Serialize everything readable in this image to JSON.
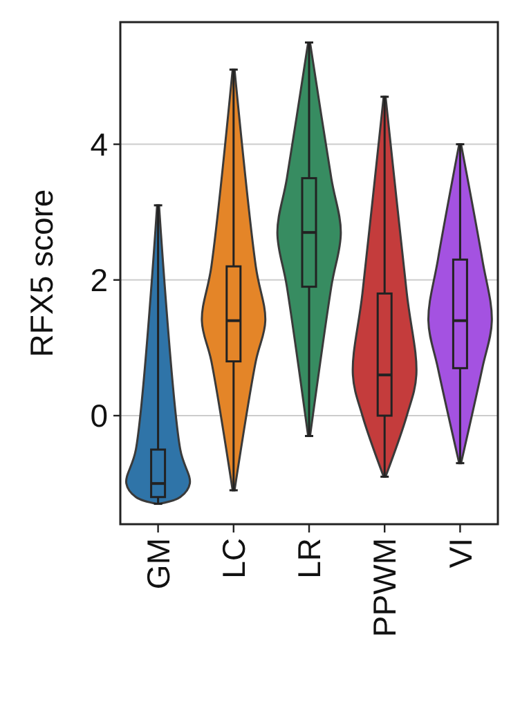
{
  "chart_data": {
    "type": "box",
    "ylabel": "RFX5 score",
    "categories": [
      "GM",
      "LC",
      "LR",
      "PPWM",
      "VI"
    ],
    "colors": [
      "#2f74a8",
      "#e48528",
      "#378c61",
      "#c43c3c",
      "#a452e1"
    ],
    "boxes": [
      {
        "low": -1.3,
        "q1": -1.2,
        "median": -1.0,
        "q3": -0.5,
        "high": 3.1
      },
      {
        "low": -1.1,
        "q1": 0.8,
        "median": 1.4,
        "q3": 2.2,
        "high": 5.1
      },
      {
        "low": -0.3,
        "q1": 1.9,
        "median": 2.7,
        "q3": 3.5,
        "high": 5.5
      },
      {
        "low": -0.9,
        "q1": 0.0,
        "median": 0.6,
        "q3": 1.8,
        "high": 4.7
      },
      {
        "low": -0.7,
        "q1": 0.7,
        "median": 1.4,
        "q3": 2.3,
        "high": 4.0
      }
    ],
    "ylim": [
      -1.6,
      5.8
    ],
    "yticks": [
      0,
      2,
      4
    ],
    "grid": "y"
  }
}
